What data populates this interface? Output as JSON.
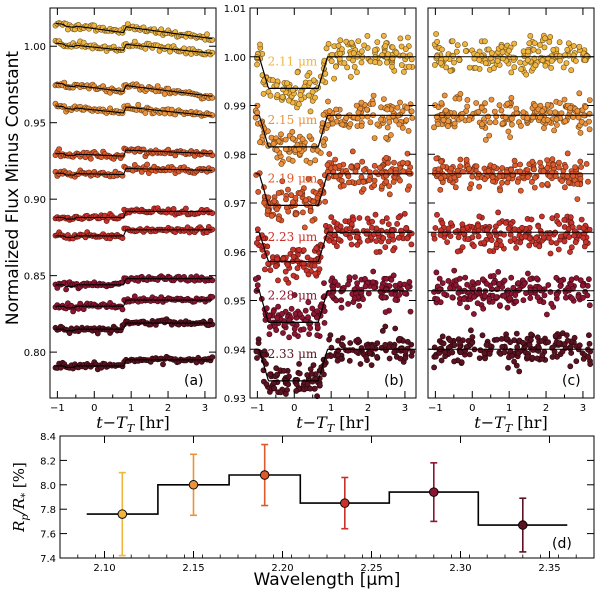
{
  "figure": {
    "ylabel": "Normalized Flux Minus Constant",
    "xlabel_bottom": "Wavelength [μm]",
    "panel_xlabel_main": "t−T",
    "panel_xlabel_sub": "T",
    "panel_xlabel_unit": " [hr]"
  },
  "colors": {
    "wavelength_colors": [
      "#f0b440",
      "#eb923a",
      "#dc5a2c",
      "#c8322a",
      "#8c1530",
      "#5c1220"
    ]
  },
  "chart_data": [
    {
      "id": "a",
      "type": "scatter",
      "panel_label": "(a)",
      "xlabel": "t−T_T [hr]",
      "ylabel": "Normalized Flux Minus Constant",
      "xlim": [
        -1.2,
        3.3
      ],
      "ylim": [
        0.77,
        1.025
      ],
      "xticks": [
        -1,
        0,
        1,
        2,
        3
      ],
      "yticks": [
        0.8,
        0.85,
        0.9,
        0.95,
        1.0
      ],
      "ytick_labels": [
        "0.80",
        "0.85",
        "0.90",
        "0.95",
        "1.00"
      ],
      "x_range": [
        -1.05,
        3.2
      ],
      "series": [
        {
          "name": "raw-1",
          "color_index": 0,
          "start": 1.015,
          "slope": -0.0033,
          "step": 0.004,
          "x_step": 0.8,
          "noise": 0.001
        },
        {
          "name": "raw-2",
          "color_index": 0,
          "start": 1.002,
          "slope": -0.0025,
          "step": 0.004,
          "x_step": 0.8,
          "noise": 0.001
        },
        {
          "name": "raw-3",
          "color_index": 1,
          "start": 0.976,
          "slope": -0.003,
          "step": 0.004,
          "x_step": 0.8,
          "noise": 0.001
        },
        {
          "name": "raw-4",
          "color_index": 1,
          "start": 0.961,
          "slope": -0.0025,
          "step": 0.004,
          "x_step": 0.8,
          "noise": 0.001
        },
        {
          "name": "raw-5",
          "color_index": 2,
          "start": 0.93,
          "slope": -0.001,
          "step": 0.004,
          "x_step": 0.8,
          "noise": 0.001
        },
        {
          "name": "raw-6",
          "color_index": 2,
          "start": 0.917,
          "slope": -0.0005,
          "step": 0.004,
          "x_step": 0.8,
          "noise": 0.001
        },
        {
          "name": "raw-7",
          "color_index": 3,
          "start": 0.888,
          "slope": 0.0,
          "step": 0.004,
          "x_step": 0.8,
          "noise": 0.001
        },
        {
          "name": "raw-8",
          "color_index": 3,
          "start": 0.876,
          "slope": 0.0,
          "step": 0.004,
          "x_step": 0.8,
          "noise": 0.001
        },
        {
          "name": "raw-9",
          "color_index": 4,
          "start": 0.844,
          "slope": 0.0,
          "step": 0.004,
          "x_step": 0.8,
          "noise": 0.001
        },
        {
          "name": "raw-10",
          "color_index": 4,
          "start": 0.83,
          "slope": 0.0,
          "step": 0.004,
          "x_step": 0.8,
          "noise": 0.001
        },
        {
          "name": "raw-11",
          "color_index": 5,
          "start": 0.815,
          "slope": 0.0,
          "step": 0.004,
          "x_step": 0.8,
          "noise": 0.001
        },
        {
          "name": "raw-12",
          "color_index": 5,
          "start": 0.791,
          "slope": 0.0,
          "step": 0.004,
          "x_step": 0.8,
          "noise": 0.001
        }
      ]
    },
    {
      "id": "b",
      "type": "scatter",
      "panel_label": "(b)",
      "xlabel": "t−T_T [hr]",
      "xlim": [
        -1.2,
        3.3
      ],
      "ylim": [
        0.93,
        1.01
      ],
      "xticks": [
        -1,
        0,
        1,
        2,
        3
      ],
      "yticks": [
        0.93,
        0.94,
        0.95,
        0.96,
        0.97,
        0.98,
        0.99,
        1.0,
        1.01
      ],
      "ytick_labels": [
        "0.93",
        "0.94",
        "0.95",
        "0.96",
        "0.97",
        "0.98",
        "0.99",
        "1.00",
        "1.01"
      ],
      "x_range": [
        -1.05,
        3.2
      ],
      "eclipse": {
        "ingress": [
          -0.95,
          -0.7
        ],
        "egress": [
          0.65,
          0.9
        ]
      },
      "series": [
        {
          "name": "2.11 μm",
          "label": "2.11 μm",
          "color_index": 0,
          "baseline": 1.0,
          "depth": 0.0065,
          "noise": 0.0017
        },
        {
          "name": "2.15 μm",
          "label": "2.15 μm",
          "color_index": 1,
          "baseline": 0.988,
          "depth": 0.0065,
          "noise": 0.0017
        },
        {
          "name": "2.19 μm",
          "label": "2.19 μm",
          "color_index": 2,
          "baseline": 0.976,
          "depth": 0.0065,
          "noise": 0.0017
        },
        {
          "name": "2.23 μm",
          "label": "2.23 μm",
          "color_index": 3,
          "baseline": 0.964,
          "depth": 0.006,
          "noise": 0.0017
        },
        {
          "name": "2.28 μm",
          "label": "2.28 μm",
          "color_index": 4,
          "baseline": 0.952,
          "depth": 0.0065,
          "noise": 0.0017
        },
        {
          "name": "2.33 μm",
          "label": "2.33 μm",
          "color_index": 5,
          "baseline": 0.94,
          "depth": 0.0065,
          "noise": 0.0017
        }
      ]
    },
    {
      "id": "c",
      "type": "scatter",
      "panel_label": "(c)",
      "xlabel": "t−T_T [hr]",
      "xlim": [
        -1.2,
        3.3
      ],
      "ylim": [
        0.93,
        1.01
      ],
      "xticks": [
        -1,
        0,
        1,
        2,
        3
      ],
      "x_range": [
        -1.05,
        3.2
      ],
      "series": [
        {
          "name": "residuals 2.11 μm",
          "color_index": 0,
          "baseline": 1.0,
          "noise": 0.0017
        },
        {
          "name": "residuals 2.15 μm",
          "color_index": 1,
          "baseline": 0.988,
          "noise": 0.0017
        },
        {
          "name": "residuals 2.19 μm",
          "color_index": 2,
          "baseline": 0.976,
          "noise": 0.0017
        },
        {
          "name": "residuals 2.23 μm",
          "color_index": 3,
          "baseline": 0.964,
          "noise": 0.0017
        },
        {
          "name": "residuals 2.28 μm",
          "color_index": 4,
          "baseline": 0.952,
          "noise": 0.0017
        },
        {
          "name": "residuals 2.33 μm",
          "color_index": 5,
          "baseline": 0.94,
          "noise": 0.0017
        }
      ]
    },
    {
      "id": "d",
      "type": "errorbar-step",
      "panel_label": "(d)",
      "xlabel": "Wavelength [μm]",
      "ylabel": "R_p/R_* [%]",
      "xlim": [
        2.075,
        2.375
      ],
      "ylim": [
        7.4,
        8.4
      ],
      "xticks": [
        2.1,
        2.15,
        2.2,
        2.25,
        2.3,
        2.35
      ],
      "xtick_labels": [
        "2.10",
        "2.15",
        "2.20",
        "2.25",
        "2.30",
        "2.35"
      ],
      "yticks": [
        7.4,
        7.6,
        7.8,
        8.0,
        8.2,
        8.4
      ],
      "ytick_labels": [
        "7.4",
        "7.6",
        "7.8",
        "8.0",
        "8.2",
        "8.4"
      ],
      "points": [
        {
          "x": 2.11,
          "y": 7.76,
          "err": 0.34,
          "color_index": 0
        },
        {
          "x": 2.15,
          "y": 8.0,
          "err": 0.25,
          "color_index": 1
        },
        {
          "x": 2.19,
          "y": 8.08,
          "err": 0.25,
          "color_index": 2
        },
        {
          "x": 2.235,
          "y": 7.85,
          "err": 0.21,
          "color_index": 3
        },
        {
          "x": 2.285,
          "y": 7.94,
          "err": 0.24,
          "color_index": 4
        },
        {
          "x": 2.335,
          "y": 7.67,
          "err": 0.22,
          "color_index": 5
        }
      ],
      "step_edges": [
        2.09,
        2.13,
        2.17,
        2.21,
        2.26,
        2.31,
        2.36
      ],
      "step_values": [
        7.76,
        8.0,
        8.08,
        7.85,
        7.94,
        7.67
      ]
    }
  ]
}
